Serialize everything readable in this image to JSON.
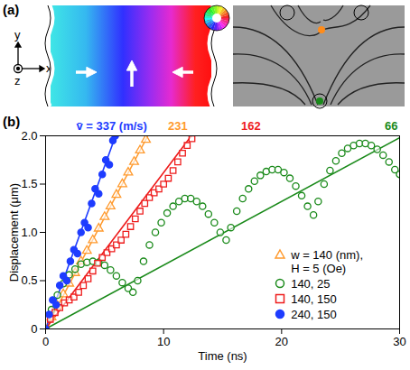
{
  "panel_a": {
    "label": "(a)",
    "axis_labels": {
      "x": "x",
      "y": "y",
      "z": "z"
    }
  },
  "chart_data": {
    "type": "scatter",
    "title": "(b)",
    "x_label": "Time (ns)",
    "y_label": "Displacement (μm)",
    "xlim": [
      0,
      30
    ],
    "ylim": [
      0,
      2
    ],
    "xticks": [
      0,
      10,
      20,
      30
    ],
    "yticks": [
      0,
      0.5,
      {
        "value": 1,
        "label": "1.0"
      },
      1.5,
      {
        "value": 2,
        "label": "2.0"
      }
    ],
    "grid": false,
    "legend": "lower right",
    "series": [
      {
        "name": "w = 140 (nm), H = 5 (Oe)",
        "color": "#ff9a2e",
        "marker": "triangle-open",
        "x": [
          0,
          0.5,
          1,
          1.5,
          2,
          2.5,
          3,
          3.5,
          4,
          4.5,
          5,
          5.5,
          6,
          6.5,
          7,
          7.5,
          8,
          8.5
        ],
        "values": [
          0,
          0.12,
          0.24,
          0.36,
          0.47,
          0.58,
          0.7,
          0.81,
          0.92,
          1.04,
          1.16,
          1.27,
          1.39,
          1.5,
          1.62,
          1.73,
          1.85,
          1.96
        ],
        "fit": {
          "x": [
            0,
            8.66
          ],
          "values": [
            0,
            2
          ]
        }
      },
      {
        "name": "140, 25",
        "color": "#1a8a1a",
        "marker": "circle-open",
        "x": [
          0,
          0.5,
          1,
          1.5,
          2,
          2.5,
          3,
          3.5,
          4,
          4.5,
          5,
          5.5,
          6,
          6.5,
          7,
          7.4,
          7.8,
          8.3,
          8.8,
          9.3,
          9.8,
          10.3,
          10.8,
          11.3,
          11.8,
          12.3,
          12.8,
          13.3,
          13.8,
          14.3,
          14.8,
          15.3,
          15.7,
          16.2,
          16.7,
          17.2,
          17.7,
          18.2,
          18.7,
          19.2,
          19.7,
          20.2,
          20.7,
          21.2,
          21.7,
          22.2,
          22.7,
          23.1,
          23.6,
          24.1,
          24.6,
          25.1,
          25.6,
          26.1,
          26.6,
          27.1,
          27.6,
          28.1,
          28.6,
          29.1,
          29.6,
          30
        ],
        "values": [
          0,
          0.2,
          0.35,
          0.47,
          0.56,
          0.62,
          0.67,
          0.69,
          0.7,
          0.69,
          0.66,
          0.61,
          0.55,
          0.48,
          0.42,
          0.38,
          0.5,
          0.7,
          0.87,
          1.0,
          1.1,
          1.2,
          1.27,
          1.32,
          1.35,
          1.35,
          1.32,
          1.27,
          1.19,
          1.1,
          1.0,
          0.92,
          1.05,
          1.22,
          1.35,
          1.45,
          1.53,
          1.59,
          1.63,
          1.65,
          1.65,
          1.62,
          1.56,
          1.48,
          1.38,
          1.27,
          1.18,
          1.32,
          1.5,
          1.64,
          1.74,
          1.82,
          1.87,
          1.9,
          1.92,
          1.92,
          1.9,
          1.86,
          1.8,
          1.73,
          1.65,
          1.6
        ],
        "fit": {
          "x": [
            0,
            30
          ],
          "values": [
            0,
            1.98
          ]
        }
      },
      {
        "name": "140, 150",
        "color": "#ee1c1c",
        "marker": "square-open",
        "x": [
          0,
          0.4,
          0.8,
          1.2,
          1.6,
          2,
          2.4,
          2.8,
          3.2,
          3.6,
          4,
          4.4,
          4.8,
          5.2,
          5.6,
          6,
          6.4,
          6.8,
          7.2,
          7.6,
          8,
          8.4,
          8.8,
          9.2,
          9.6,
          10,
          10.4,
          10.8,
          11.2,
          11.6,
          12,
          12.4
        ],
        "values": [
          0,
          0.1,
          0.17,
          0.22,
          0.27,
          0.3,
          0.33,
          0.38,
          0.45,
          0.52,
          0.6,
          0.68,
          0.74,
          0.79,
          0.83,
          0.87,
          0.92,
          0.98,
          1.06,
          1.14,
          1.22,
          1.3,
          1.36,
          1.41,
          1.45,
          1.5,
          1.56,
          1.64,
          1.73,
          1.82,
          1.9,
          1.97
        ],
        "fit": {
          "x": [
            0,
            12.35
          ],
          "values": [
            0,
            2
          ]
        }
      },
      {
        "name": "240, 150",
        "color": "#1e3cff",
        "marker": "circle",
        "x": [
          0,
          0.3,
          0.6,
          0.9,
          1.2,
          1.5,
          1.8,
          2.1,
          2.4,
          2.7,
          3,
          3.3,
          3.6,
          3.9,
          4.2,
          4.5,
          4.8,
          5.1,
          5.4,
          5.7,
          5.9
        ],
        "values": [
          0,
          0.15,
          0.3,
          0.25,
          0.45,
          0.55,
          0.5,
          0.7,
          0.82,
          0.78,
          1.0,
          1.1,
          1.05,
          1.3,
          1.45,
          1.4,
          1.6,
          1.75,
          1.7,
          1.95,
          2.0
        ],
        "fit": {
          "x": [
            0,
            5.93
          ],
          "values": [
            0,
            2
          ]
        }
      }
    ],
    "annotations": [
      {
        "text": "v̄ = 337 (m/s)",
        "x": 5.6,
        "y": 2.1,
        "color": "#1e3cff"
      },
      {
        "text": "231",
        "x": 11.2,
        "y": 2.1,
        "color": "#ff9a2e"
      },
      {
        "text": "162",
        "x": 17.4,
        "y": 2.1,
        "color": "#ee1c1c"
      },
      {
        "text": "66",
        "x": 29.3,
        "y": 2.1,
        "color": "#1a8a1a"
      }
    ]
  }
}
